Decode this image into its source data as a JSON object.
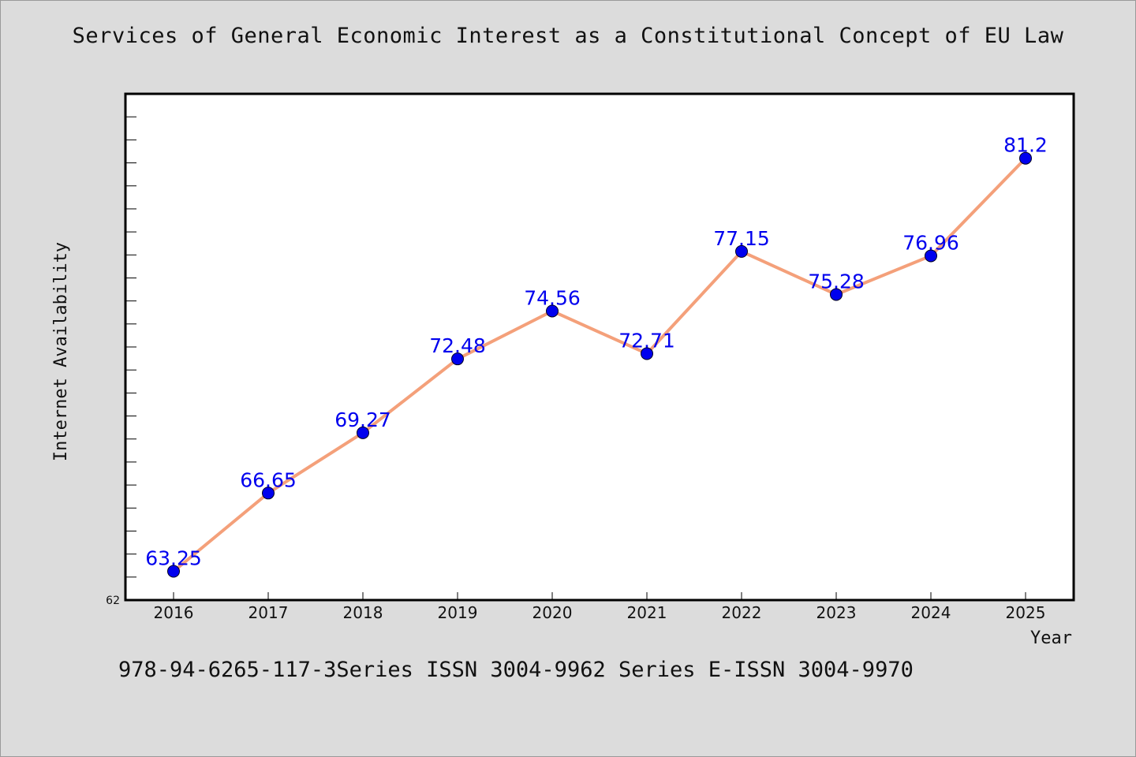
{
  "page": {
    "title": "Services of General Economic Interest as a Constitutional Concept of EU Law",
    "footer": "978-94-6265-117-3Series ISSN 3004-9962 Series E-ISSN 3004-9970"
  },
  "chart_data": {
    "type": "line",
    "title": "Services of General Economic Interest as a Constitutional Concept of EU Law",
    "xlabel": "Year",
    "ylabel": "Internet Availability",
    "categories": [
      "2016",
      "2017",
      "2018",
      "2019",
      "2020",
      "2021",
      "2022",
      "2023",
      "2024",
      "2025"
    ],
    "series": [
      {
        "values": [
          63.25,
          66.65,
          69.27,
          72.48,
          74.56,
          72.71,
          77.15,
          75.28,
          76.96,
          81.2
        ],
        "line_color": "#f4a07a",
        "marker_color": "#0000ee",
        "label_color": "#0000ee"
      }
    ],
    "data_labels": [
      "63.25",
      "66.65",
      "69.27",
      "72.48",
      "74.56",
      "72.71",
      "77.15",
      "75.28",
      "76.96",
      "81.2"
    ],
    "ylim": [
      62,
      84
    ],
    "ytick_labels": [
      "62"
    ],
    "grid": false,
    "legend": "none"
  }
}
